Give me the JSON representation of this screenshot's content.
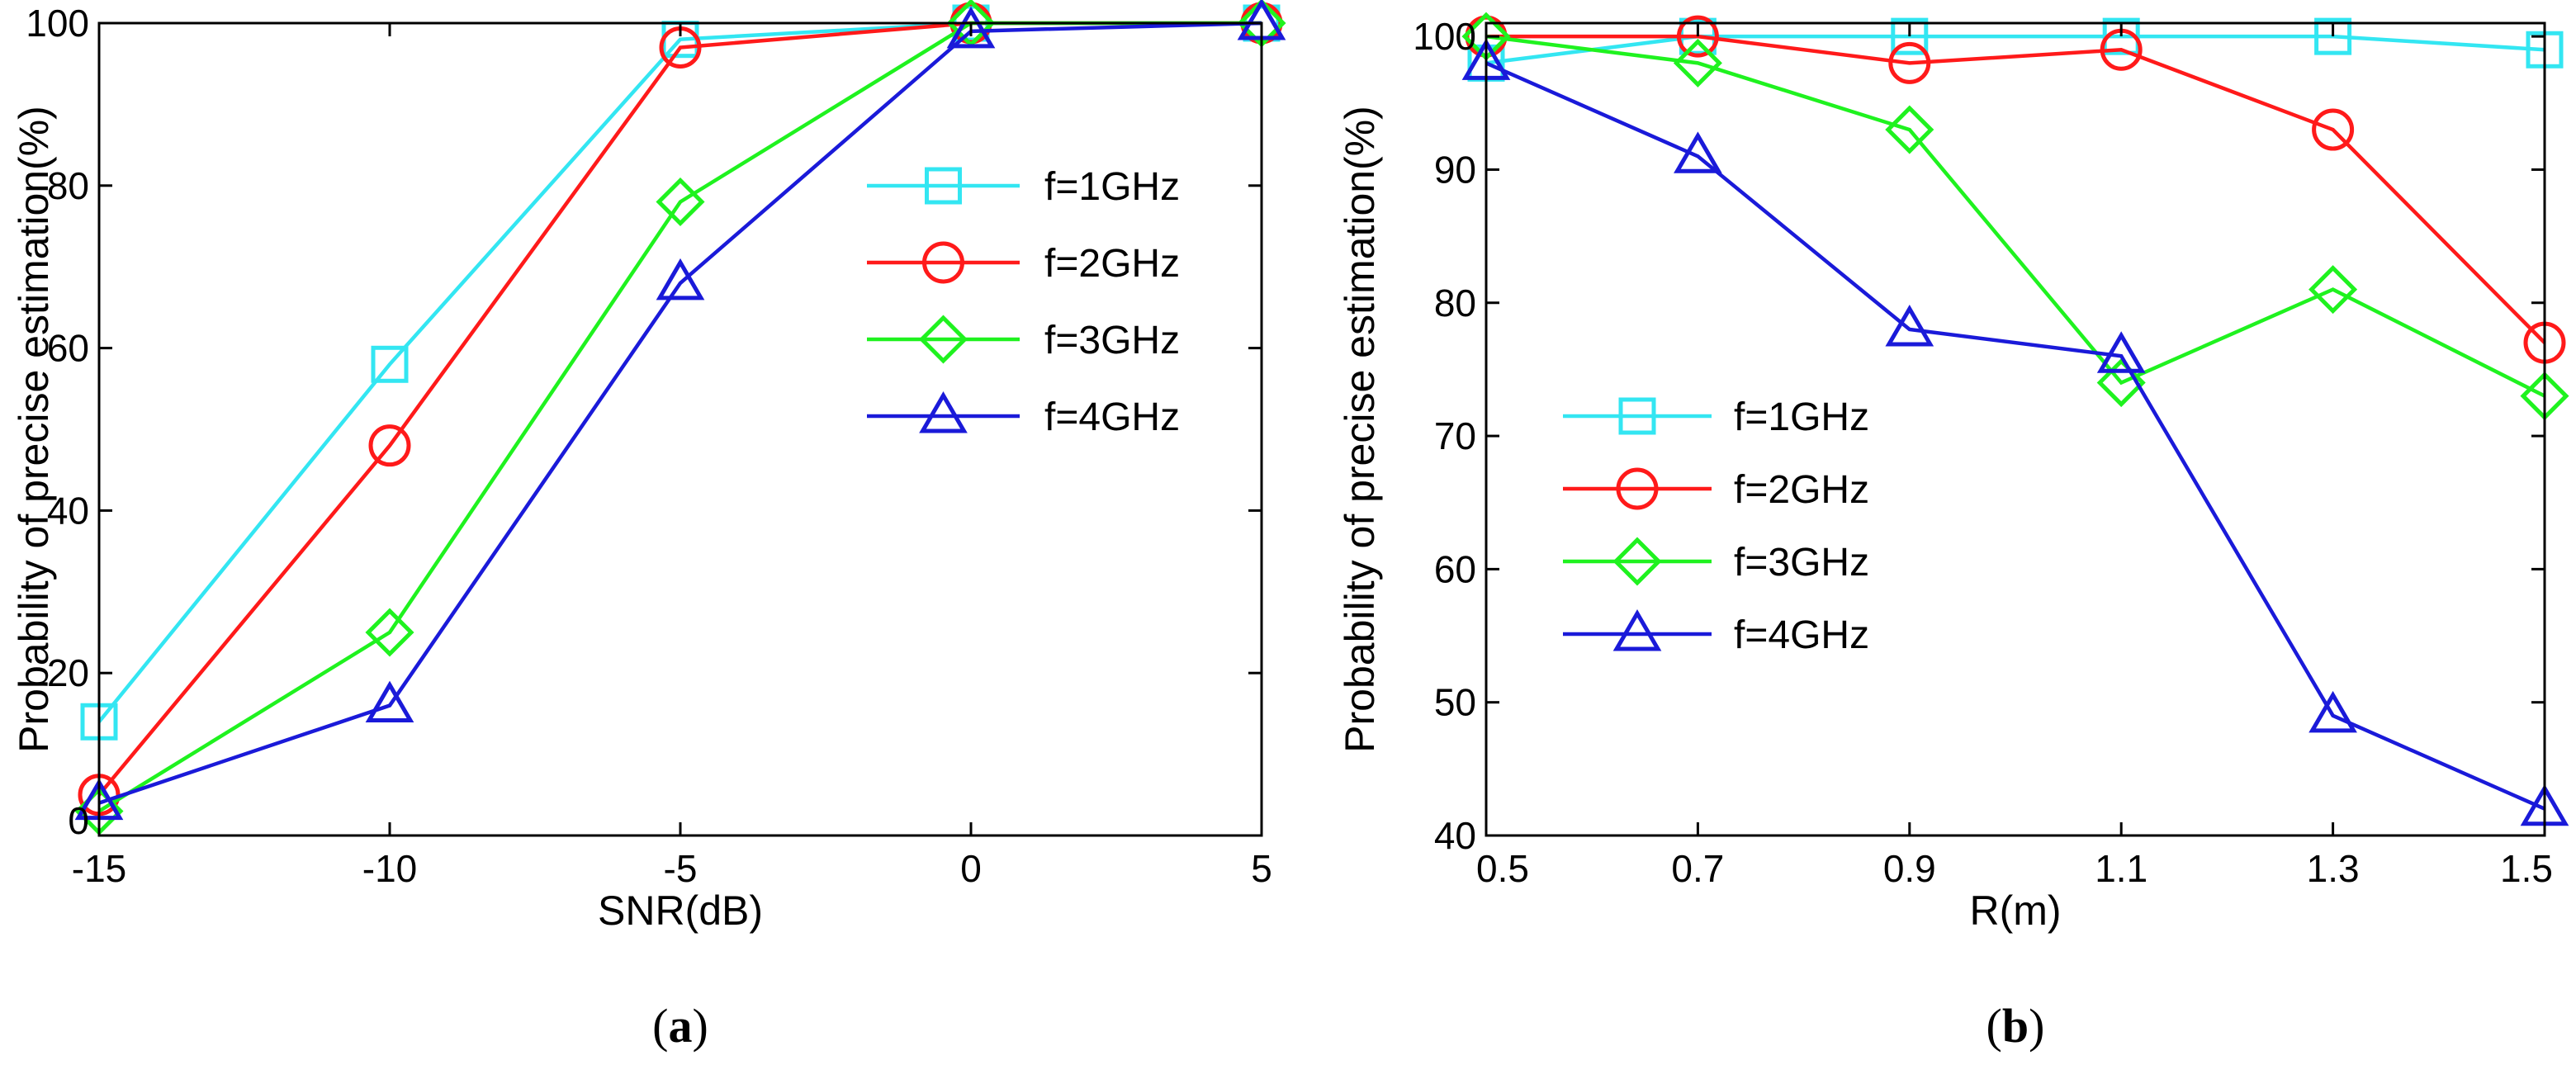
{
  "chart_data": [
    {
      "type": "line",
      "caption_open": "(",
      "caption_letter": "a",
      "caption_close": ")",
      "xlabel": "SNR(dB)",
      "ylabel": "Probability of precise estimation(%)",
      "x": [
        -15,
        -10,
        -5,
        0,
        5
      ],
      "xlim": [
        -15,
        5
      ],
      "ylim": [
        0,
        100
      ],
      "xticks": [
        "-15",
        "-10",
        "-5",
        "0",
        "5"
      ],
      "yticks": [
        "0",
        "20",
        "40",
        "60",
        "80",
        "100"
      ],
      "grid": false,
      "legend_position": "right",
      "series": [
        {
          "name": "f=1GHz",
          "color": "#33e6f2",
          "marker": "square",
          "values": [
            14,
            58,
            98,
            100,
            100
          ]
        },
        {
          "name": "f=2GHz",
          "color": "#ff1a1a",
          "marker": "circle",
          "values": [
            5,
            48,
            97,
            100,
            100
          ]
        },
        {
          "name": "f=3GHz",
          "color": "#1ff21f",
          "marker": "diamond",
          "values": [
            3,
            25,
            78,
            100,
            100
          ]
        },
        {
          "name": "f=4GHz",
          "color": "#1a1ad9",
          "marker": "triangle",
          "values": [
            4,
            16,
            68,
            99,
            100
          ]
        }
      ]
    },
    {
      "type": "line",
      "caption_open": "(",
      "caption_letter": "b",
      "caption_close": ")",
      "xlabel": "R(m)",
      "ylabel": "Probability of precise estimation(%)",
      "x": [
        0.5,
        0.7,
        0.9,
        1.1,
        1.3,
        1.5
      ],
      "xlim": [
        0.5,
        1.5
      ],
      "ylim": [
        40,
        101
      ],
      "xticks": [
        "0.5",
        "0.7",
        "0.9",
        "1.1",
        "1.3",
        "1.5"
      ],
      "yticks": [
        "40",
        "50",
        "60",
        "70",
        "80",
        "90",
        "100"
      ],
      "grid": false,
      "legend_position": "center-left",
      "series": [
        {
          "name": "f=1GHz",
          "color": "#33e6f2",
          "marker": "square",
          "values": [
            98,
            100,
            100,
            100,
            100,
            99
          ]
        },
        {
          "name": "f=2GHz",
          "color": "#ff1a1a",
          "marker": "circle",
          "values": [
            100,
            100,
            98,
            99,
            93,
            77
          ]
        },
        {
          "name": "f=3GHz",
          "color": "#1ff21f",
          "marker": "diamond",
          "values": [
            100,
            98,
            93,
            74,
            81,
            73
          ]
        },
        {
          "name": "f=4GHz",
          "color": "#1a1ad9",
          "marker": "triangle",
          "values": [
            98,
            91,
            78,
            76,
            49,
            42
          ]
        }
      ]
    }
  ]
}
